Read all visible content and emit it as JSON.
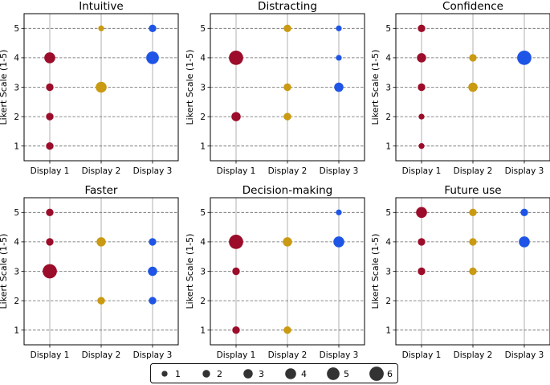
{
  "chart_data": {
    "type": "scatter",
    "layout": "2x3 grid of bubble scatter plots",
    "categories": [
      "Display 1",
      "Display 2",
      "Display 3"
    ],
    "ylabel": "Likert Scale (1-5)",
    "yticks": [
      1,
      2,
      3,
      4,
      5
    ],
    "ylim": [
      0.5,
      5.5
    ],
    "grid": "dashed horizontal at y ticks, solid vertical at categories",
    "series_colors": [
      "#9b0d2a",
      "#c99a12",
      "#1e55e6"
    ],
    "size_legend": {
      "position": "bottom-center",
      "counts": [
        1,
        2,
        3,
        4,
        5,
        6
      ],
      "labels": [
        "1",
        "2",
        "3",
        "4",
        "5",
        "6"
      ]
    },
    "panels": [
      {
        "title": "Intuitive",
        "points": [
          {
            "display": 0,
            "score": 4,
            "count": 4
          },
          {
            "display": 0,
            "score": 3,
            "count": 2
          },
          {
            "display": 0,
            "score": 2,
            "count": 2
          },
          {
            "display": 0,
            "score": 1,
            "count": 2
          },
          {
            "display": 1,
            "score": 5,
            "count": 1
          },
          {
            "display": 1,
            "score": 3,
            "count": 4
          },
          {
            "display": 2,
            "score": 5,
            "count": 2
          },
          {
            "display": 2,
            "score": 4,
            "count": 5
          }
        ]
      },
      {
        "title": "Distracting",
        "points": [
          {
            "display": 0,
            "score": 4,
            "count": 6
          },
          {
            "display": 0,
            "score": 2,
            "count": 3
          },
          {
            "display": 1,
            "score": 5,
            "count": 2
          },
          {
            "display": 1,
            "score": 3,
            "count": 2
          },
          {
            "display": 1,
            "score": 2,
            "count": 2
          },
          {
            "display": 2,
            "score": 5,
            "count": 1
          },
          {
            "display": 2,
            "score": 4,
            "count": 1
          },
          {
            "display": 2,
            "score": 3,
            "count": 3
          }
        ]
      },
      {
        "title": "Confidence",
        "points": [
          {
            "display": 0,
            "score": 5,
            "count": 2
          },
          {
            "display": 0,
            "score": 4,
            "count": 3
          },
          {
            "display": 0,
            "score": 3,
            "count": 2
          },
          {
            "display": 0,
            "score": 2,
            "count": 1
          },
          {
            "display": 0,
            "score": 1,
            "count": 1
          },
          {
            "display": 1,
            "score": 4,
            "count": 2
          },
          {
            "display": 1,
            "score": 3,
            "count": 3
          },
          {
            "display": 2,
            "score": 4,
            "count": 6
          }
        ]
      },
      {
        "title": "Faster",
        "points": [
          {
            "display": 0,
            "score": 5,
            "count": 2
          },
          {
            "display": 0,
            "score": 4,
            "count": 2
          },
          {
            "display": 0,
            "score": 3,
            "count": 6
          },
          {
            "display": 1,
            "score": 4,
            "count": 3
          },
          {
            "display": 1,
            "score": 2,
            "count": 2
          },
          {
            "display": 2,
            "score": 4,
            "count": 2
          },
          {
            "display": 2,
            "score": 3,
            "count": 3
          },
          {
            "display": 2,
            "score": 2,
            "count": 2
          }
        ]
      },
      {
        "title": "Decision-making",
        "points": [
          {
            "display": 0,
            "score": 4,
            "count": 6
          },
          {
            "display": 0,
            "score": 3,
            "count": 2
          },
          {
            "display": 0,
            "score": 1,
            "count": 2
          },
          {
            "display": 1,
            "score": 4,
            "count": 3
          },
          {
            "display": 1,
            "score": 1,
            "count": 2
          },
          {
            "display": 2,
            "score": 5,
            "count": 1
          },
          {
            "display": 2,
            "score": 4,
            "count": 4
          }
        ]
      },
      {
        "title": "Future use",
        "points": [
          {
            "display": 0,
            "score": 5,
            "count": 4
          },
          {
            "display": 0,
            "score": 4,
            "count": 2
          },
          {
            "display": 0,
            "score": 3,
            "count": 2
          },
          {
            "display": 1,
            "score": 5,
            "count": 2
          },
          {
            "display": 1,
            "score": 4,
            "count": 2
          },
          {
            "display": 1,
            "score": 3,
            "count": 2
          },
          {
            "display": 2,
            "score": 5,
            "count": 2
          },
          {
            "display": 2,
            "score": 4,
            "count": 4
          }
        ]
      }
    ]
  }
}
